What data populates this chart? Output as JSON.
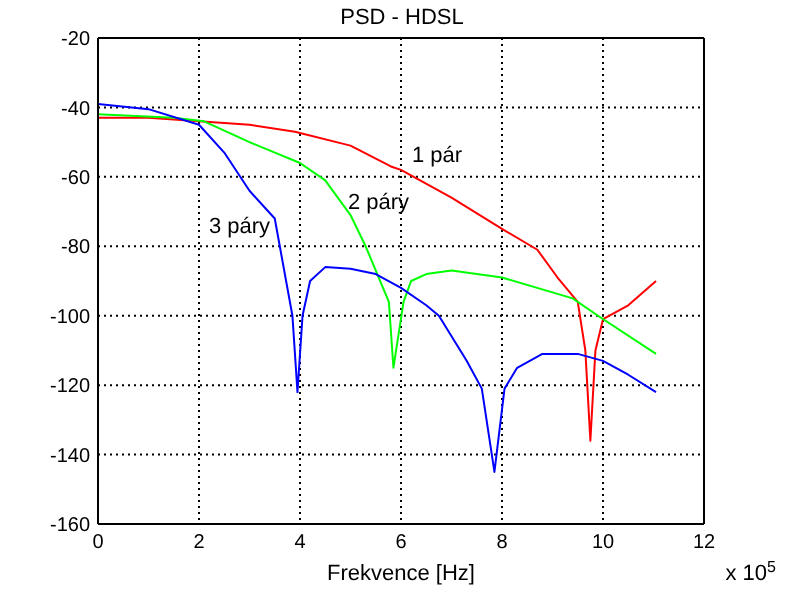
{
  "chart_data": {
    "type": "line",
    "title": "PSD - HDSL",
    "xlabel": "Frekvence [Hz]",
    "annotations": [
      "x 10$^{5}$"
    ],
    "xlim": [
      0,
      12
    ],
    "xticks": [
      0,
      2,
      4,
      6,
      8,
      10,
      12
    ],
    "ylim": [
      -160,
      -20
    ],
    "yticks": [
      -160,
      -140,
      -120,
      -100,
      -80,
      -60,
      -40,
      -20
    ],
    "grid": true,
    "legend": false,
    "marker": "none",
    "line_style": "solid",
    "series": [
      {
        "name": "1 pár",
        "color": "#ff0000",
        "x": [
          0,
          1,
          2,
          3,
          3.9,
          5,
          5.8,
          6,
          7,
          8,
          8.7,
          9.1,
          9.5,
          9.65,
          9.75,
          9.85,
          10,
          10.5,
          11.05
        ],
        "values": [
          -43,
          -43,
          -44,
          -45,
          -47,
          -51,
          -57,
          -58,
          -66,
          -75,
          -81,
          -89,
          -96,
          -110,
          -136,
          -110,
          -101,
          -97,
          -90
        ]
      },
      {
        "name": "2 páry",
        "color": "#00ff00",
        "x": [
          0,
          1.5,
          2.1,
          3,
          4,
          4.5,
          5,
          5.3,
          5.76,
          5.85,
          6.05,
          6.2,
          6.5,
          7,
          7.5,
          8,
          9.4,
          9.9,
          11.05
        ],
        "values": [
          -42,
          -43,
          -44,
          -50,
          -56,
          -61,
          -71,
          -80,
          -96,
          -115,
          -96,
          -90,
          -88,
          -87,
          -88,
          -89,
          -95,
          -100,
          -111
        ]
      },
      {
        "name": "3 páry",
        "color": "#0000ff",
        "x": [
          0,
          1,
          2,
          2.5,
          3,
          3.5,
          3.6,
          3.85,
          3.95,
          4.05,
          4.2,
          4.5,
          5,
          5.5,
          6,
          6.5,
          6.75,
          7.3,
          7.6,
          7.85,
          8.05,
          8.3,
          8.8,
          9.5,
          10,
          10.5,
          11.05
        ],
        "values": [
          -39,
          -40.5,
          -45,
          -53,
          -64,
          -72,
          -80,
          -100,
          -122,
          -100,
          -90,
          -86,
          -86.5,
          -88,
          -92,
          -97,
          -100,
          -113,
          -121,
          -145,
          -121,
          -115,
          -111,
          -111,
          -113,
          -117,
          -122
        ]
      }
    ]
  }
}
